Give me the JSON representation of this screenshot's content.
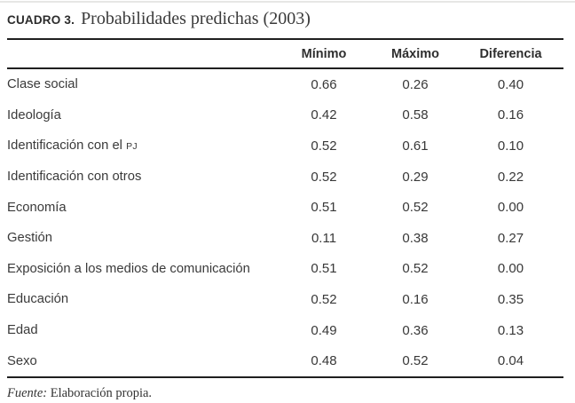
{
  "title": {
    "label": "CUADRO 3.",
    "text": "Probabilidades predichas (2003)"
  },
  "table": {
    "columns": [
      "Mínimo",
      "Máximo",
      "Diferencia"
    ],
    "rows": [
      {
        "label": "Clase social",
        "label_small": "",
        "values": [
          "0.66",
          "0.26",
          "0.40"
        ]
      },
      {
        "label": "Ideología",
        "label_small": "",
        "values": [
          "0.42",
          "0.58",
          "0.16"
        ]
      },
      {
        "label": "Identificación con el ",
        "label_small": "PJ",
        "values": [
          "0.52",
          "0.61",
          "0.10"
        ]
      },
      {
        "label": "Identificación con otros",
        "label_small": "",
        "values": [
          "0.52",
          "0.29",
          "0.22"
        ]
      },
      {
        "label": "Economía",
        "label_small": "",
        "values": [
          "0.51",
          "0.52",
          "0.00"
        ]
      },
      {
        "label": "Gestión",
        "label_small": "",
        "values": [
          "0.11",
          "0.38",
          "0.27"
        ]
      },
      {
        "label": "Exposición a los medios de comunicación",
        "label_small": "",
        "values": [
          "0.51",
          "0.52",
          "0.00"
        ]
      },
      {
        "label": "Educación",
        "label_small": "",
        "values": [
          "0.52",
          "0.16",
          "0.35"
        ]
      },
      {
        "label": "Edad",
        "label_small": "",
        "values": [
          "0.49",
          "0.36",
          "0.13"
        ]
      },
      {
        "label": "Sexo",
        "label_small": "",
        "values": [
          "0.48",
          "0.52",
          "0.04"
        ]
      }
    ]
  },
  "footer": {
    "source_label": "Fuente:",
    "source_text": "Elaboración propia."
  },
  "colors": {
    "text": "#343434",
    "rule": "#1f1f1f",
    "background": "#ffffff"
  }
}
